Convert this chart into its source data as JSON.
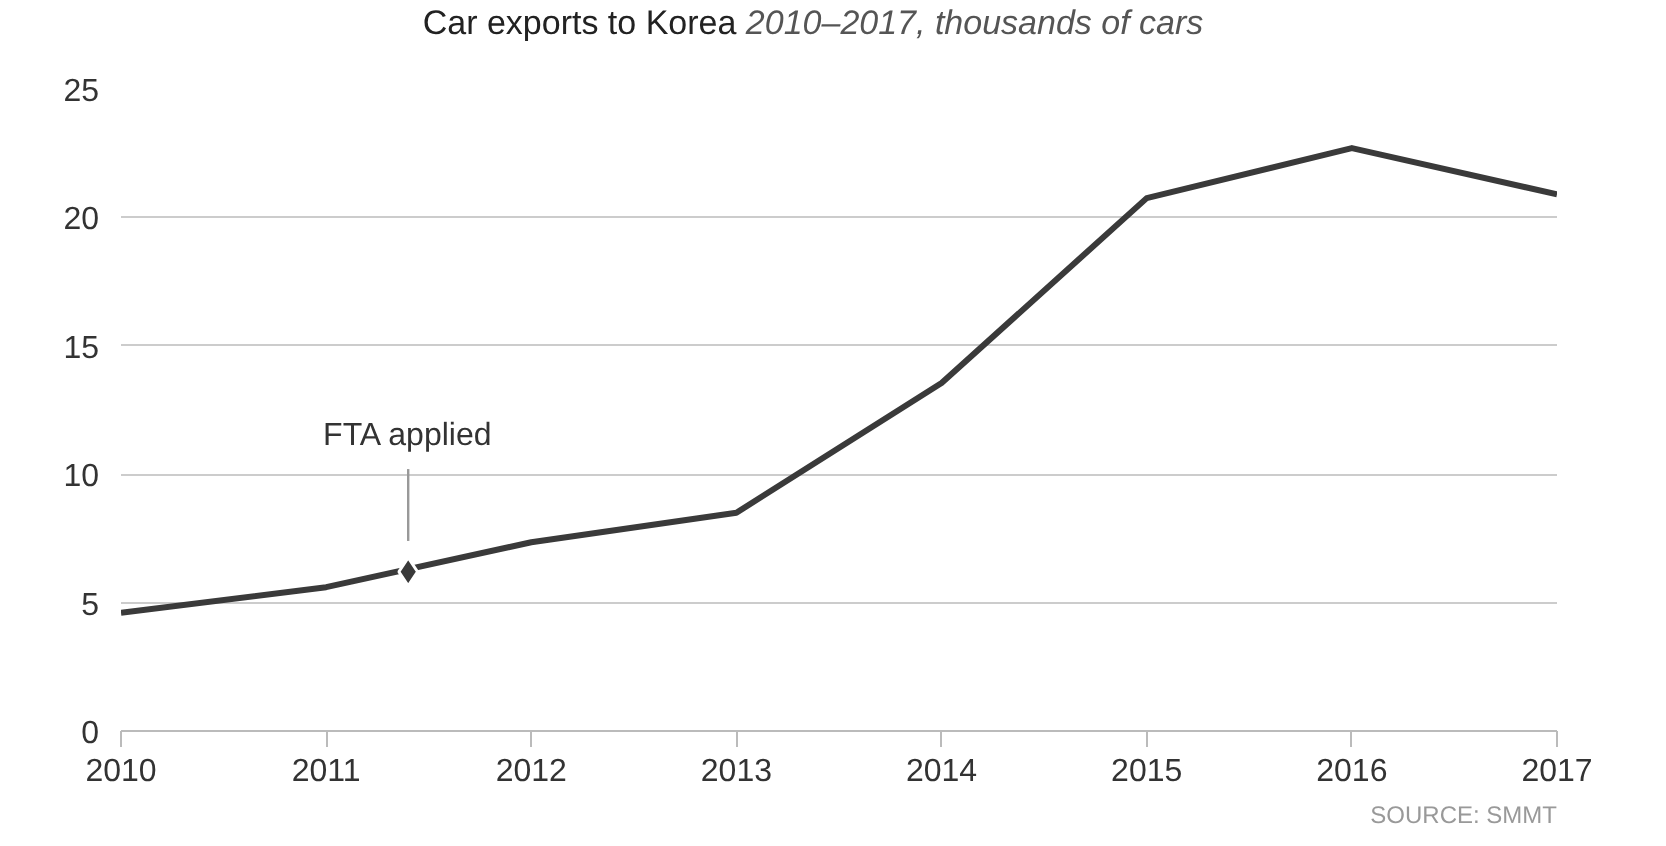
{
  "chart_data": {
    "type": "line",
    "title": "Car exports to Korea",
    "subtitle": "2010–2017, thousands of cars",
    "x": [
      2010,
      2011,
      2012,
      2013,
      2014,
      2015,
      2016,
      2017
    ],
    "series": [
      {
        "color": "#3a3a3a",
        "values": [
          4.6,
          5.6,
          7.35,
          8.5,
          13.55,
          20.75,
          22.7,
          20.9
        ]
      },
      {
        "type": "scatter",
        "name": "FTA applied",
        "marker": "diamond",
        "color": "#3a3a3a",
        "x": [
          2011.4
        ],
        "values": [
          6.2
        ]
      }
    ],
    "annotations": [
      "SOURCE: SMMT"
    ],
    "xlim": [
      2010,
      2017
    ],
    "xticks": [
      2010,
      2011,
      2012,
      2013,
      2014,
      2015,
      2016,
      2017
    ],
    "ylim": [
      0,
      25
    ],
    "yticks": [
      0,
      5,
      10,
      15,
      20,
      25
    ],
    "grid": "y",
    "marker": "none",
    "line_style": "solid"
  }
}
